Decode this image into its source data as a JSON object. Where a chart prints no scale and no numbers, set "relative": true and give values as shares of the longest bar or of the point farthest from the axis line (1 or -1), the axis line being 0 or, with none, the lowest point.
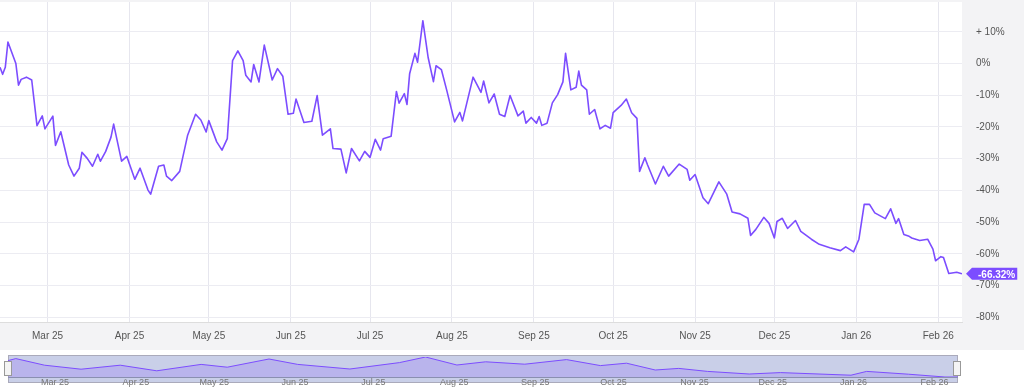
{
  "chart_data": [
    {
      "type": "line",
      "color": "#7c4dff",
      "x": [
        "2025-02-11",
        "2025-02-12",
        "2025-02-13",
        "2025-02-14",
        "2025-02-17",
        "2025-02-18",
        "2025-02-19",
        "2025-02-21",
        "2025-02-23",
        "2025-02-25",
        "2025-02-27",
        "2025-02-28",
        "2025-03-03",
        "2025-03-04",
        "2025-03-06",
        "2025-03-09",
        "2025-03-11",
        "2025-03-13",
        "2025-03-14",
        "2025-03-16",
        "2025-03-18",
        "2025-03-20",
        "2025-03-21",
        "2025-03-23",
        "2025-03-25",
        "2025-03-26",
        "2025-03-29",
        "2025-03-31",
        "2025-04-03",
        "2025-04-05",
        "2025-04-08",
        "2025-04-09",
        "2025-04-12",
        "2025-04-14",
        "2025-04-15",
        "2025-04-17",
        "2025-04-20",
        "2025-04-23",
        "2025-04-26",
        "2025-04-28",
        "2025-04-30",
        "2025-05-01",
        "2025-05-04",
        "2025-05-06",
        "2025-05-08",
        "2025-05-10",
        "2025-05-12",
        "2025-05-14",
        "2025-05-15",
        "2025-05-17",
        "2025-05-18",
        "2025-05-20",
        "2025-05-22",
        "2025-05-25",
        "2025-05-27",
        "2025-05-29",
        "2025-05-31",
        "2025-06-02",
        "2025-06-03",
        "2025-06-06",
        "2025-06-09",
        "2025-06-11",
        "2025-06-13",
        "2025-06-16",
        "2025-06-17",
        "2025-06-20",
        "2025-06-22",
        "2025-06-24",
        "2025-06-27",
        "2025-06-29",
        "2025-07-01",
        "2025-07-03",
        "2025-07-05",
        "2025-07-06",
        "2025-07-09",
        "2025-07-11",
        "2025-07-12",
        "2025-07-14",
        "2025-07-15",
        "2025-07-16",
        "2025-07-18",
        "2025-07-19",
        "2025-07-21",
        "2025-07-23",
        "2025-07-25",
        "2025-07-26",
        "2025-07-28",
        "2025-07-30",
        "2025-08-02",
        "2025-08-04",
        "2025-08-05",
        "2025-08-09",
        "2025-08-12",
        "2025-08-13",
        "2025-08-15",
        "2025-08-17",
        "2025-08-19",
        "2025-08-21",
        "2025-08-23",
        "2025-08-26",
        "2025-08-28",
        "2025-08-29",
        "2025-08-31",
        "2025-09-02",
        "2025-09-03",
        "2025-09-04",
        "2025-09-06",
        "2025-09-08",
        "2025-09-10",
        "2025-09-12",
        "2025-09-13",
        "2025-09-15",
        "2025-09-17",
        "2025-09-18",
        "2025-09-19",
        "2025-09-21",
        "2025-09-22",
        "2025-09-24",
        "2025-09-26",
        "2025-09-28",
        "2025-09-30",
        "2025-10-01",
        "2025-10-04",
        "2025-10-06",
        "2025-10-08",
        "2025-10-10",
        "2025-10-11",
        "2025-10-13",
        "2025-10-14",
        "2025-10-17",
        "2025-10-20",
        "2025-10-22",
        "2025-10-26",
        "2025-10-29",
        "2025-10-30",
        "2025-11-01",
        "2025-11-04",
        "2025-11-06",
        "2025-11-10",
        "2025-11-13",
        "2025-11-15",
        "2025-11-18",
        "2025-11-21",
        "2025-11-22",
        "2025-11-24",
        "2025-11-27",
        "2025-11-29",
        "2025-12-01",
        "2025-12-02",
        "2025-12-04",
        "2025-12-06",
        "2025-12-09",
        "2025-12-11",
        "2025-12-15",
        "2025-12-18",
        "2025-12-22",
        "2025-12-26",
        "2025-12-28",
        "2025-12-31",
        "2026-01-02",
        "2026-01-04",
        "2026-01-06",
        "2026-01-08",
        "2026-01-12",
        "2026-01-14",
        "2026-01-16",
        "2026-01-17",
        "2026-01-19",
        "2026-01-21",
        "2026-01-22",
        "2026-01-25",
        "2026-01-28",
        "2026-01-30",
        "2026-01-31",
        "2026-02-02",
        "2026-02-03",
        "2026-02-05",
        "2026-02-08",
        "2026-02-10"
      ],
      "values": [
        -1.2,
        -3.4,
        -1.2,
        6.8,
        0,
        -6.8,
        -5,
        -4.3,
        -5.2,
        -19.6,
        -16.5,
        -20.6,
        -16.6,
        -25.8,
        -21.5,
        -32,
        -35.5,
        -33,
        -28,
        -29.9,
        -32.4,
        -28.6,
        -30.8,
        -27.7,
        -23.2,
        -19.1,
        -30.8,
        -29.3,
        -36.5,
        -33,
        -39.9,
        -41.2,
        -32.4,
        -32,
        -35.5,
        -36.9,
        -34,
        -22.6,
        -16,
        -17.8,
        -21.6,
        -18,
        -24.7,
        -27.3,
        -23.7,
        0.9,
        4,
        0.9,
        -3.7,
        -5.8,
        -0.3,
        -5.8,
        5.8,
        -5.2,
        -1.6,
        -4,
        -16,
        -15.7,
        -11.2,
        -18.6,
        -18.2,
        -10.1,
        -22.6,
        -20.6,
        -26.8,
        -27,
        -34.5,
        -26.8,
        -30.7,
        -27.7,
        -29.6,
        -23.9,
        -27.3,
        -23.7,
        -22.9,
        -8.8,
        -12.5,
        -9.5,
        -12.9,
        -3.2,
        3.2,
        0.4,
        13.5,
        1.9,
        -5.7,
        -0.7,
        -1.9,
        -8.3,
        -18.4,
        -15.4,
        -18.1,
        -4.3,
        -9.1,
        -5.5,
        -12.4,
        -9.6,
        -16,
        -16.7,
        -10.1,
        -16.5,
        -15,
        -18.8,
        -17,
        -18.8,
        -16.7,
        -19.5,
        -18.8,
        -12.4,
        -9.8,
        -5.8,
        3.2,
        -8.3,
        -7.5,
        -2.4,
        -6.8,
        -8.3,
        -16,
        -14.5,
        -20.6,
        -19.5,
        -20.4,
        -15.5,
        -13.2,
        -11.2,
        -15.5,
        -17.3,
        -34,
        -29.7,
        -31.9,
        -38,
        -32.4,
        -35.5,
        -31.7,
        -33.4,
        -36.8,
        -35,
        -42.3,
        -44.2,
        -37.3,
        -41.2,
        -46.8,
        -47.4,
        -48.8,
        -54.2,
        -52.3,
        -48.5,
        -50.4,
        -55,
        -49.8,
        -48.8,
        -52,
        -49.5,
        -52.9,
        -55.4,
        -57,
        -58.1,
        -59,
        -57.8,
        -59.4,
        -55.4,
        -44.4,
        -44.4,
        -47.1,
        -48.9,
        -45.8,
        -50.4,
        -48.9,
        -53.9,
        -54.5,
        -55,
        -55.8,
        -55.4,
        -58.5,
        -62.2,
        -60.9,
        -61.2,
        -66.2,
        -65.8,
        -66.32
      ],
      "xlim": [
        "2025-02-11",
        "2026-02-10"
      ],
      "xticks": [
        {
          "value": "2025-03-01",
          "label": "Mar 25"
        },
        {
          "value": "2025-04-01",
          "label": "Apr 25"
        },
        {
          "value": "2025-05-01",
          "label": "May 25"
        },
        {
          "value": "2025-06-01",
          "label": "Jun 25"
        },
        {
          "value": "2025-07-01",
          "label": "Jul 25"
        },
        {
          "value": "2025-08-01",
          "label": "Aug 25"
        },
        {
          "value": "2025-09-01",
          "label": "Sep 25"
        },
        {
          "value": "2025-10-01",
          "label": "Oct 25"
        },
        {
          "value": "2025-11-01",
          "label": "Nov 25"
        },
        {
          "value": "2025-12-01",
          "label": "Dec 25"
        },
        {
          "value": "2026-01-01",
          "label": "Jan 26"
        },
        {
          "value": "2026-02-01",
          "label": "Feb 26"
        }
      ],
      "ylim": [
        -81.5,
        19.4
      ],
      "yticks": [
        {
          "value": 10,
          "label": "+ 10%"
        },
        {
          "value": 0,
          "label": "0%"
        },
        {
          "value": -10,
          "label": "-10%"
        },
        {
          "value": -20,
          "label": "-20%"
        },
        {
          "value": -30,
          "label": "-30%"
        },
        {
          "value": -40,
          "label": "-40%"
        },
        {
          "value": -50,
          "label": "-50%"
        },
        {
          "value": -60,
          "label": "-60%"
        },
        {
          "value": -70,
          "label": "-70%"
        },
        {
          "value": -80,
          "label": "-80%"
        }
      ],
      "grid": true,
      "annotations": [
        {
          "text": "-66.32%",
          "x": "2026-02-10",
          "y": -66.32
        }
      ]
    },
    {
      "type": "area",
      "color": "#7c4dff",
      "relative": true,
      "tick_labels": "x",
      "x": [
        "2025-02-11",
        "2025-02-14",
        "2025-02-25",
        "2025-03-11",
        "2025-03-26",
        "2025-04-09",
        "2025-04-26",
        "2025-05-06",
        "2025-05-22",
        "2025-06-02",
        "2025-06-22",
        "2025-07-11",
        "2025-07-21",
        "2025-08-02",
        "2025-08-13",
        "2025-08-28",
        "2025-09-13",
        "2025-09-26",
        "2025-10-06",
        "2025-10-17",
        "2025-10-26",
        "2025-11-06",
        "2025-11-22",
        "2025-12-04",
        "2025-12-31",
        "2026-01-06",
        "2026-01-22",
        "2026-02-05",
        "2026-02-10"
      ],
      "values": [
        0.82,
        0.92,
        0.59,
        0.39,
        0.59,
        0.31,
        0.63,
        0.49,
        0.9,
        0.63,
        0.4,
        0.72,
        1,
        0.6,
        0.76,
        0.64,
        0.87,
        0.57,
        0.69,
        0.35,
        0.43,
        0.28,
        0.15,
        0.22,
        0.09,
        0.28,
        0.14,
        0.0,
        0
      ],
      "xlim": [
        "2025-02-11",
        "2026-02-10"
      ],
      "xticks": [
        {
          "value": "2025-03-01",
          "label": "Mar 25"
        },
        {
          "value": "2025-04-01",
          "label": "Apr 25"
        },
        {
          "value": "2025-05-01",
          "label": "May 25"
        },
        {
          "value": "2025-06-01",
          "label": "Jun 25"
        },
        {
          "value": "2025-07-01",
          "label": "Jul 25"
        },
        {
          "value": "2025-08-01",
          "label": "Aug 25"
        },
        {
          "value": "2025-09-01",
          "label": "Sep 25"
        },
        {
          "value": "2025-10-01",
          "label": "Oct 25"
        },
        {
          "value": "2025-11-01",
          "label": "Nov 25"
        },
        {
          "value": "2025-12-01",
          "label": "Dec 25"
        },
        {
          "value": "2026-01-01",
          "label": "Jan 26"
        },
        {
          "value": "2026-02-01",
          "label": "Feb 26"
        }
      ]
    }
  ]
}
